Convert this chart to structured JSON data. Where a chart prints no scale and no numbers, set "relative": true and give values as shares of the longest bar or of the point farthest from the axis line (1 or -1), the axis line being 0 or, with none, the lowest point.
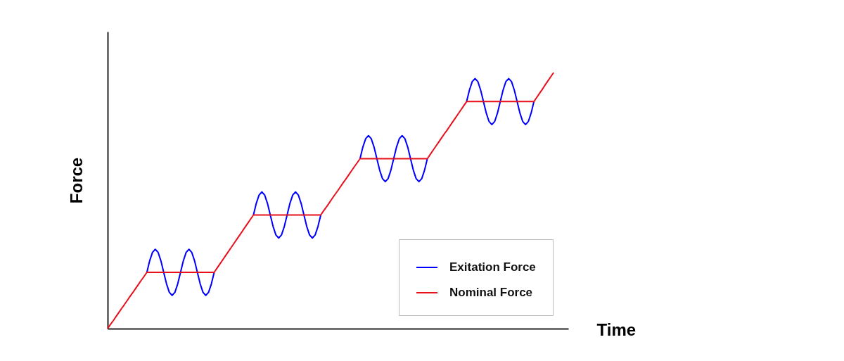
{
  "chart_data": {
    "type": "line",
    "relative": true,
    "xlabel": "Time",
    "ylabel": "Force",
    "legend": "bottom right",
    "line_style": "solid",
    "categories": [
      null,
      null,
      null,
      null,
      null,
      null,
      null,
      null,
      null,
      null,
      null,
      null,
      null,
      null,
      null,
      null,
      null,
      null,
      null,
      null,
      null,
      null,
      null,
      null,
      null,
      null,
      null,
      null,
      null,
      null,
      null,
      null,
      null,
      null,
      null,
      null,
      null,
      null,
      null,
      null,
      null,
      null,
      null,
      null,
      null,
      null,
      null,
      null,
      null,
      null,
      null,
      null,
      null,
      null,
      null,
      null,
      null,
      null,
      null,
      null,
      null,
      null,
      null,
      null,
      null,
      null,
      null,
      null,
      null,
      null,
      null,
      null,
      null,
      null,
      null,
      null,
      null,
      null,
      null,
      null,
      null,
      null,
      null,
      null,
      null,
      null,
      null,
      null,
      null,
      null,
      null,
      null,
      null,
      null,
      null,
      null,
      null,
      null,
      null,
      null,
      null,
      null,
      null,
      null,
      null,
      null,
      null,
      null,
      null,
      null,
      null,
      null,
      null,
      null,
      null,
      null,
      null,
      null,
      null,
      null,
      null,
      null,
      null,
      null,
      null,
      null,
      null,
      null,
      null,
      null,
      null,
      null,
      null,
      null,
      null,
      null,
      null,
      null,
      null,
      null,
      null,
      null,
      null,
      null,
      null,
      null,
      null,
      null,
      null,
      null,
      null,
      null,
      null,
      null,
      null,
      null,
      null,
      null,
      null,
      null
    ],
    "series": [
      {
        "name": "Exitation Force",
        "color": "#0000ff",
        "values": [
          null,
          null,
          null,
          null,
          null,
          null,
          null,
          null,
          null,
          null,
          null,
          null,
          null,
          null,
          0.22,
          0.265,
          0.298,
          0.31,
          0.298,
          0.265,
          0.22,
          0.175,
          0.142,
          0.13,
          0.142,
          0.175,
          0.22,
          0.265,
          0.298,
          0.31,
          0.298,
          0.265,
          0.22,
          0.175,
          0.142,
          0.13,
          0.142,
          0.175,
          0.22,
          null,
          null,
          null,
          null,
          null,
          null,
          null,
          null,
          null,
          null,
          null,
          null,
          null,
          0.444,
          0.489,
          0.522,
          0.534,
          0.522,
          0.489,
          0.444,
          0.399,
          0.366,
          0.354,
          0.366,
          0.399,
          0.444,
          0.489,
          0.522,
          0.534,
          0.522,
          0.489,
          0.444,
          0.399,
          0.366,
          0.354,
          0.366,
          0.399,
          0.444,
          null,
          null,
          null,
          null,
          null,
          null,
          null,
          null,
          null,
          null,
          null,
          null,
          null,
          0.664,
          0.709,
          0.742,
          0.754,
          0.742,
          0.709,
          0.664,
          0.619,
          0.586,
          0.574,
          0.586,
          0.619,
          0.664,
          0.709,
          0.742,
          0.754,
          0.742,
          0.709,
          0.664,
          0.619,
          0.586,
          0.574,
          0.586,
          0.619,
          0.664,
          null,
          null,
          null,
          null,
          null,
          null,
          null,
          null,
          null,
          null,
          null,
          null,
          null,
          0.887,
          0.932,
          0.965,
          0.977,
          0.965,
          0.932,
          0.887,
          0.842,
          0.809,
          0.797,
          0.809,
          0.842,
          0.887,
          0.932,
          0.965,
          0.977,
          0.965,
          0.932,
          0.887,
          0.842,
          0.809,
          0.797,
          0.809,
          0.842,
          0.887,
          null,
          null,
          null,
          null,
          null,
          null,
          null
        ]
      },
      {
        "name": "Nominal Force",
        "color": "#e8101c",
        "values": [
          0,
          0.016,
          0.031,
          0.047,
          0.063,
          0.079,
          0.094,
          0.11,
          0.126,
          0.141,
          0.157,
          0.173,
          0.189,
          0.204,
          0.22,
          0.22,
          0.22,
          0.22,
          0.22,
          0.22,
          0.22,
          0.22,
          0.22,
          0.22,
          0.22,
          0.22,
          0.22,
          0.22,
          0.22,
          0.22,
          0.22,
          0.22,
          0.22,
          0.22,
          0.22,
          0.22,
          0.22,
          0.22,
          0.22,
          0.236,
          0.252,
          0.268,
          0.284,
          0.3,
          0.316,
          0.332,
          0.348,
          0.364,
          0.38,
          0.396,
          0.412,
          0.428,
          0.444,
          0.444,
          0.444,
          0.444,
          0.444,
          0.444,
          0.444,
          0.444,
          0.444,
          0.444,
          0.444,
          0.444,
          0.444,
          0.444,
          0.444,
          0.444,
          0.444,
          0.444,
          0.444,
          0.444,
          0.444,
          0.444,
          0.444,
          0.444,
          0.444,
          0.46,
          0.475,
          0.491,
          0.507,
          0.523,
          0.538,
          0.554,
          0.57,
          0.585,
          0.601,
          0.617,
          0.633,
          0.648,
          0.664,
          0.664,
          0.664,
          0.664,
          0.664,
          0.664,
          0.664,
          0.664,
          0.664,
          0.664,
          0.664,
          0.664,
          0.664,
          0.664,
          0.664,
          0.664,
          0.664,
          0.664,
          0.664,
          0.664,
          0.664,
          0.664,
          0.664,
          0.664,
          0.664,
          0.68,
          0.696,
          0.712,
          0.728,
          0.744,
          0.76,
          0.775,
          0.791,
          0.807,
          0.823,
          0.839,
          0.855,
          0.871,
          0.887,
          0.887,
          0.887,
          0.887,
          0.887,
          0.887,
          0.887,
          0.887,
          0.887,
          0.887,
          0.887,
          0.887,
          0.887,
          0.887,
          0.887,
          0.887,
          0.887,
          0.887,
          0.887,
          0.887,
          0.887,
          0.887,
          0.887,
          0.887,
          0.887,
          0.903,
          0.919,
          0.935,
          0.952,
          0.968,
          0.984,
          1
        ]
      }
    ]
  }
}
